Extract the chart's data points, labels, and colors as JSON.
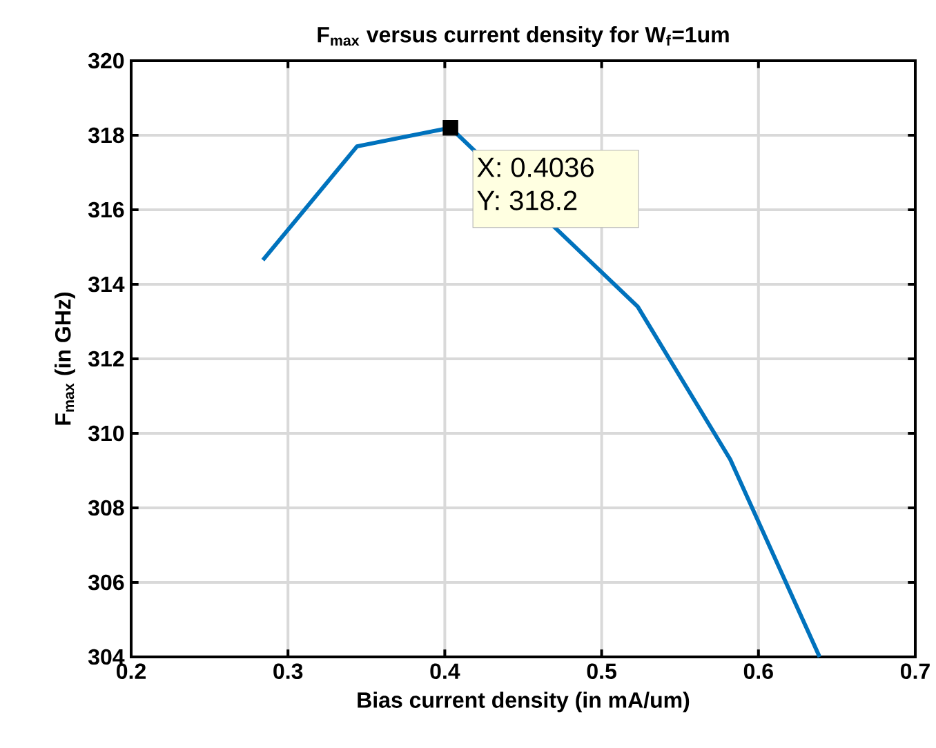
{
  "chart_data": {
    "type": "line",
    "title": "F$_{max}$ versus current density for W$_{f}$=1um",
    "xlabel": "Bias current density (in mA/um)",
    "ylabel": "F$_{max}$ (in GHz)",
    "x": [
      0.284,
      0.344,
      0.4036,
      0.523,
      0.582,
      0.639
    ],
    "series": [
      {
        "color": "#0072bd",
        "values": [
          314.65,
          317.7,
          318.2,
          313.4,
          309.3,
          304
        ]
      }
    ],
    "xlim": [
      0.2,
      0.7
    ],
    "xticks": [
      0.2,
      0.3,
      0.4,
      0.5,
      0.6,
      0.7
    ],
    "ylim": [
      304,
      320
    ],
    "yticks": [
      304,
      306,
      308,
      310,
      312,
      314,
      316,
      318,
      320
    ],
    "grid": true,
    "marker": "none",
    "line_style": "solid",
    "annotations": [
      {
        "text": "X: 0.4036",
        "x": 0.4036,
        "y": 318.2
      },
      {
        "text": "Y: 318.2",
        "x": 0.4036,
        "y": 318.2
      }
    ]
  }
}
